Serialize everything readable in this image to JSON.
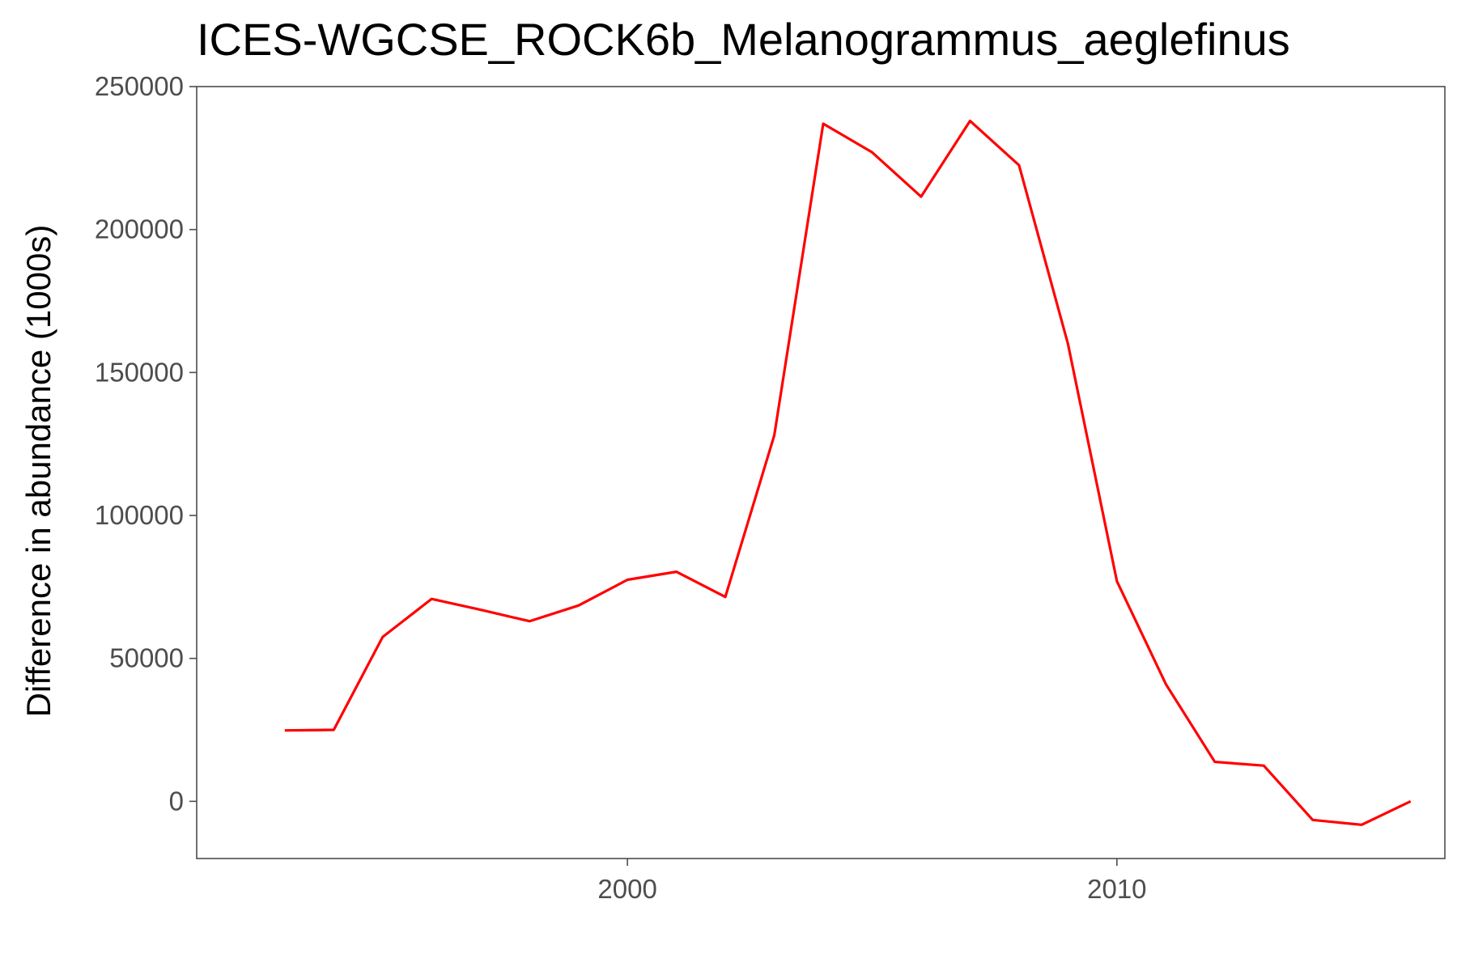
{
  "chart_data": {
    "type": "line",
    "title": "ICES-WGCSE_ROCK6b_Melanogrammus_aeglefinus",
    "xlabel": "",
    "ylabel": "Difference in abundance (1000s)",
    "x": [
      1993,
      1994,
      1995,
      1996,
      1997,
      1998,
      1999,
      2000,
      2001,
      2002,
      2003,
      2004,
      2005,
      2006,
      2007,
      2008,
      2009,
      2010,
      2011,
      2012,
      2013,
      2014,
      2015,
      2016
    ],
    "series": [
      {
        "values": [
          24800,
          25000,
          57500,
          70800,
          67000,
          63000,
          68500,
          77500,
          80300,
          71500,
          128000,
          237000,
          227000,
          211500,
          238000,
          222500,
          160000,
          77000,
          41000,
          13800,
          12500,
          -6500,
          -8200,
          0
        ],
        "color": "#ff0000"
      }
    ],
    "xlim": [
      1991.2,
      2016.7
    ],
    "ylim": [
      -20000,
      250000
    ],
    "xticks": [
      2000,
      2010
    ],
    "xtick_labels": [
      "2000",
      "2010"
    ],
    "yticks": [
      0,
      50000,
      100000,
      150000,
      200000,
      250000
    ],
    "ytick_labels": [
      "0",
      "50000",
      "100000",
      "150000",
      "200000",
      "250000"
    ],
    "grid": false,
    "legend": "none",
    "theme": "bw-border"
  }
}
